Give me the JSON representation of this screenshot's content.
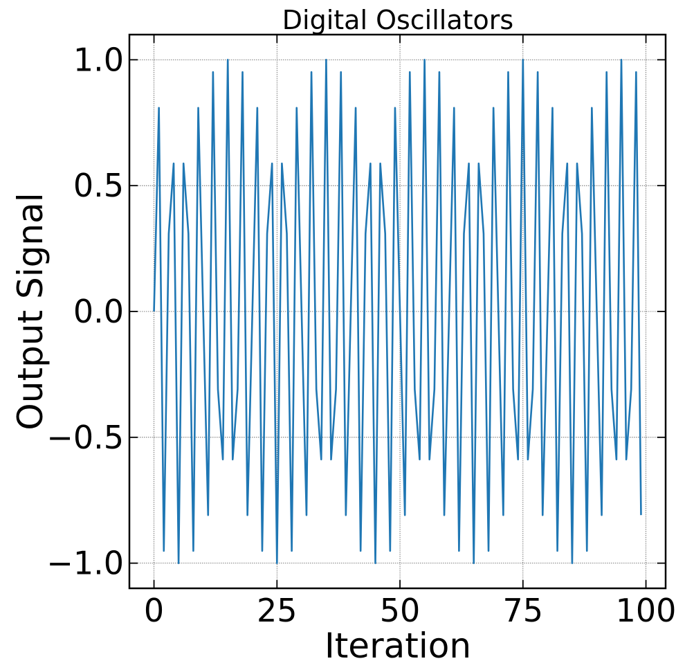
{
  "chart_data": {
    "type": "line",
    "title": "Digital Oscillators",
    "xlabel": "Iteration",
    "ylabel": "Output Signal",
    "xlim": [
      -5,
      104
    ],
    "ylim": [
      -1.1,
      1.1
    ],
    "xticks": [
      0,
      25,
      50,
      75,
      100
    ],
    "xtick_labels": [
      "0",
      "25",
      "50",
      "75",
      "100"
    ],
    "yticks": [
      -1.0,
      -0.5,
      0.0,
      0.5,
      1.0
    ],
    "ytick_labels": [
      "−1.0",
      "−0.5",
      "0.0",
      "0.5",
      "1.0"
    ],
    "grid": true,
    "series_color": "#1f77b4",
    "series": [
      {
        "x": [
          0,
          1,
          2,
          3,
          4,
          5,
          6,
          7,
          8,
          9,
          10,
          11,
          12,
          13,
          14,
          15,
          16,
          17,
          18,
          19,
          20,
          21,
          22,
          23,
          24,
          25,
          26,
          27,
          28,
          29,
          30,
          31,
          32,
          33,
          34,
          35,
          36,
          37,
          38,
          39,
          40,
          41,
          42,
          43,
          44,
          45,
          46,
          47,
          48,
          49,
          50,
          51,
          52,
          53,
          54,
          55,
          56,
          57,
          58,
          59,
          60,
          61,
          62,
          63,
          64,
          65,
          66,
          67,
          68,
          69,
          70,
          71,
          72,
          73,
          74,
          75,
          76,
          77,
          78,
          79,
          80,
          81,
          82,
          83,
          84,
          85,
          86,
          87,
          88,
          89,
          90,
          91,
          92,
          93,
          94,
          95,
          96,
          97,
          98,
          99
        ],
        "y": [
          0,
          0.809,
          -0.951,
          0.309,
          0.588,
          -1.0,
          0.588,
          0.309,
          -0.951,
          0.809,
          0,
          -0.809,
          0.951,
          -0.309,
          -0.588,
          1.0,
          -0.588,
          -0.309,
          0.951,
          -0.809,
          0,
          0.809,
          -0.951,
          0.309,
          0.588,
          -1.0,
          0.588,
          0.309,
          -0.951,
          0.809,
          0,
          -0.809,
          0.951,
          -0.309,
          -0.588,
          1.0,
          -0.588,
          -0.309,
          0.951,
          -0.809,
          0,
          0.809,
          -0.951,
          0.309,
          0.588,
          -1.0,
          0.588,
          0.309,
          -0.951,
          0.809,
          0,
          -0.809,
          0.951,
          -0.309,
          -0.588,
          1.0,
          -0.588,
          -0.309,
          0.951,
          -0.809,
          0,
          0.809,
          -0.951,
          0.309,
          0.588,
          -1.0,
          0.588,
          0.309,
          -0.951,
          0.809,
          0,
          -0.809,
          0.951,
          -0.309,
          -0.588,
          1.0,
          -0.588,
          -0.309,
          0.951,
          -0.809,
          0,
          0.809,
          -0.951,
          0.309,
          0.588,
          -1.0,
          0.588,
          0.309,
          -0.951,
          0.809,
          0,
          -0.809,
          0.951,
          -0.309,
          -0.588,
          1.0,
          -0.588,
          -0.309,
          0.951,
          -0.809
        ]
      }
    ]
  }
}
